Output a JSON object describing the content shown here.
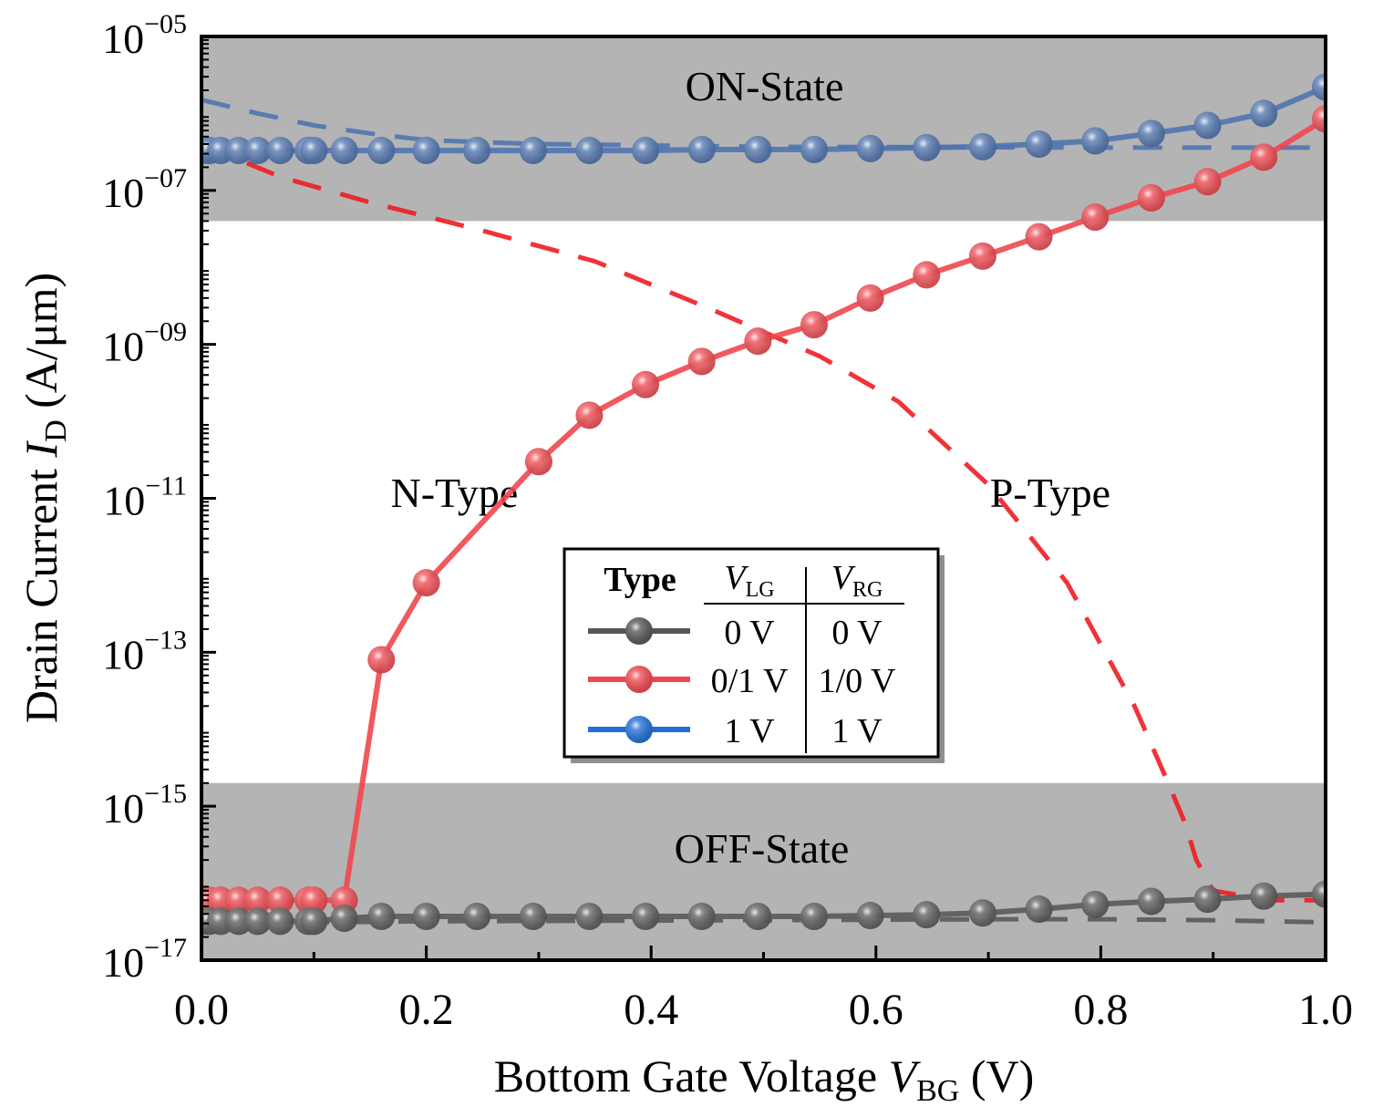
{
  "chart_data": {
    "type": "line",
    "xlabel": {
      "prefix": "Bottom Gate Voltage ",
      "var": "V",
      "sub": "BG",
      "suffix": " (V)"
    },
    "ylabel": {
      "prefix": "Drain Current ",
      "var": "I",
      "sub": "D",
      "suffix": " (A/μm)"
    },
    "xlim": [
      0,
      1
    ],
    "ylim_log10": [
      -17,
      -5
    ],
    "y_scale": "log",
    "grid": false,
    "x_ticks": [
      0,
      0.2,
      0.4,
      0.6,
      0.8,
      1.0
    ],
    "x_tick_labels": [
      "0.0",
      "0.2",
      "0.4",
      "0.6",
      "0.8",
      "1.0"
    ],
    "y_tick_exponents": [
      -17,
      -15,
      -13,
      -11,
      -9,
      -7,
      -5
    ],
    "y_tick_labels": [
      {
        "base": "10",
        "exp": "−17"
      },
      {
        "base": "10",
        "exp": "−15"
      },
      {
        "base": "10",
        "exp": "−13"
      },
      {
        "base": "10",
        "exp": "−11"
      },
      {
        "base": "10",
        "exp": "−09"
      },
      {
        "base": "10",
        "exp": "−07"
      },
      {
        "base": "10",
        "exp": "−05"
      }
    ],
    "regions": [
      {
        "label": "ON-State",
        "y_from": 4e-08,
        "y_to": 1e-05,
        "color": "#b4b4b4"
      },
      {
        "label": "OFF-State",
        "y_from": 1e-17,
        "y_to": 2e-15,
        "color": "#b4b4b4"
      }
    ],
    "annotations": [
      {
        "text": "N-Type",
        "x": 0.225,
        "y": 1.2e-11
      },
      {
        "text": "P-Type",
        "x": 0.755,
        "y": 1.2e-11
      }
    ],
    "legend": {
      "position": "lower-center",
      "header": {
        "type": "Type",
        "vlg": {
          "var": "V",
          "sub": "LG"
        },
        "vrg": {
          "var": "V",
          "sub": "RG"
        }
      },
      "rows": [
        {
          "vlg": "0 V",
          "vrg": "0 V",
          "color": "#555555"
        },
        {
          "vlg": "0/1 V",
          "vrg": "1/0 V",
          "color": "#f0474e"
        },
        {
          "vlg": "1 V",
          "vrg": "1 V",
          "color": "#1f6fd6"
        }
      ]
    },
    "series": [
      {
        "style": "solid-markers",
        "color": "#f0474e",
        "points": [
          [
            0,
            6e-17
          ],
          [
            0.007,
            6e-17
          ],
          [
            0.017,
            6e-17
          ],
          [
            0.033,
            6e-17
          ],
          [
            0.05,
            6e-17
          ],
          [
            0.07,
            6e-17
          ],
          [
            0.095,
            6e-17
          ],
          [
            0.1,
            6e-17
          ],
          [
            0.127,
            6e-17
          ],
          [
            0.16,
            8e-14
          ],
          [
            0.2,
            8e-13
          ],
          [
            0.3,
            3e-11
          ],
          [
            0.345,
            1.2e-10
          ],
          [
            0.395,
            3e-10
          ],
          [
            0.445,
            6e-10
          ],
          [
            0.495,
            1.1e-09
          ],
          [
            0.545,
            1.8e-09
          ],
          [
            0.595,
            4e-09
          ],
          [
            0.645,
            8e-09
          ],
          [
            0.695,
            1.4e-08
          ],
          [
            0.745,
            2.5e-08
          ],
          [
            0.795,
            4.5e-08
          ],
          [
            0.845,
            8e-08
          ],
          [
            0.895,
            1.3e-07
          ],
          [
            0.945,
            2.7e-07
          ],
          [
            1.0,
            8.5e-07
          ]
        ]
      },
      {
        "style": "solid-markers",
        "color": "#4f74b0",
        "points": [
          [
            0,
            3.3e-07
          ],
          [
            0.007,
            3.3e-07
          ],
          [
            0.017,
            3.3e-07
          ],
          [
            0.033,
            3.3e-07
          ],
          [
            0.05,
            3.3e-07
          ],
          [
            0.07,
            3.3e-07
          ],
          [
            0.095,
            3.3e-07
          ],
          [
            0.1,
            3.3e-07
          ],
          [
            0.127,
            3.3e-07
          ],
          [
            0.16,
            3.3e-07
          ],
          [
            0.2,
            3.3e-07
          ],
          [
            0.245,
            3.3e-07
          ],
          [
            0.295,
            3.3e-07
          ],
          [
            0.345,
            3.3e-07
          ],
          [
            0.395,
            3.3e-07
          ],
          [
            0.445,
            3.4e-07
          ],
          [
            0.495,
            3.4e-07
          ],
          [
            0.545,
            3.4e-07
          ],
          [
            0.595,
            3.5e-07
          ],
          [
            0.645,
            3.6e-07
          ],
          [
            0.695,
            3.7e-07
          ],
          [
            0.745,
            4e-07
          ],
          [
            0.795,
            4.4e-07
          ],
          [
            0.845,
            5.5e-07
          ],
          [
            0.895,
            7e-07
          ],
          [
            0.945,
            1e-06
          ],
          [
            1.0,
            2.2e-06
          ]
        ]
      },
      {
        "style": "solid-markers",
        "color": "#5a5a5a",
        "points": [
          [
            0,
            3.2e-17
          ],
          [
            0.007,
            3.2e-17
          ],
          [
            0.017,
            3.2e-17
          ],
          [
            0.033,
            3.2e-17
          ],
          [
            0.05,
            3.2e-17
          ],
          [
            0.07,
            3.2e-17
          ],
          [
            0.095,
            3.2e-17
          ],
          [
            0.1,
            3.2e-17
          ],
          [
            0.127,
            3.5e-17
          ],
          [
            0.16,
            3.7e-17
          ],
          [
            0.2,
            3.7e-17
          ],
          [
            0.245,
            3.7e-17
          ],
          [
            0.295,
            3.7e-17
          ],
          [
            0.345,
            3.7e-17
          ],
          [
            0.395,
            3.7e-17
          ],
          [
            0.445,
            3.7e-17
          ],
          [
            0.495,
            3.7e-17
          ],
          [
            0.545,
            3.7e-17
          ],
          [
            0.595,
            3.8e-17
          ],
          [
            0.645,
            3.9e-17
          ],
          [
            0.695,
            4.1e-17
          ],
          [
            0.745,
            4.6e-17
          ],
          [
            0.795,
            5.3e-17
          ],
          [
            0.845,
            5.8e-17
          ],
          [
            0.895,
            6.2e-17
          ],
          [
            0.945,
            6.8e-17
          ],
          [
            1.0,
            7.2e-17
          ]
        ]
      },
      {
        "style": "dashed",
        "color": "#ee1c24",
        "points": [
          [
            0,
            4e-07
          ],
          [
            0.07,
            1.5e-07
          ],
          [
            0.15,
            7e-08
          ],
          [
            0.25,
            3e-08
          ],
          [
            0.35,
            1.2e-08
          ],
          [
            0.45,
            3e-09
          ],
          [
            0.55,
            7e-10
          ],
          [
            0.62,
            1.8e-10
          ],
          [
            0.7,
            1.5e-11
          ],
          [
            0.77,
            8e-13
          ],
          [
            0.83,
            2e-14
          ],
          [
            0.86,
            2e-15
          ],
          [
            0.875,
            6e-16
          ],
          [
            0.885,
            2e-16
          ],
          [
            0.9,
            8e-17
          ],
          [
            0.95,
            6e-17
          ],
          [
            1.0,
            6e-17
          ]
        ]
      },
      {
        "style": "dashed",
        "color": "#4f74b0",
        "points": [
          [
            0,
            1.5e-06
          ],
          [
            0.05,
            1e-06
          ],
          [
            0.1,
            7e-07
          ],
          [
            0.15,
            5.5e-07
          ],
          [
            0.2,
            4.5e-07
          ],
          [
            0.3,
            4e-07
          ],
          [
            0.5,
            3.7e-07
          ],
          [
            0.8,
            3.6e-07
          ],
          [
            0.9,
            3.6e-07
          ],
          [
            1.0,
            3.6e-07
          ]
        ]
      },
      {
        "style": "dashed",
        "color": "#5a5a5a",
        "points": [
          [
            0,
            3e-17
          ],
          [
            0.2,
            3.2e-17
          ],
          [
            0.5,
            3.3e-17
          ],
          [
            0.7,
            3.4e-17
          ],
          [
            0.8,
            3.4e-17
          ],
          [
            0.9,
            3.3e-17
          ],
          [
            1.0,
            3.1e-17
          ]
        ]
      }
    ]
  }
}
